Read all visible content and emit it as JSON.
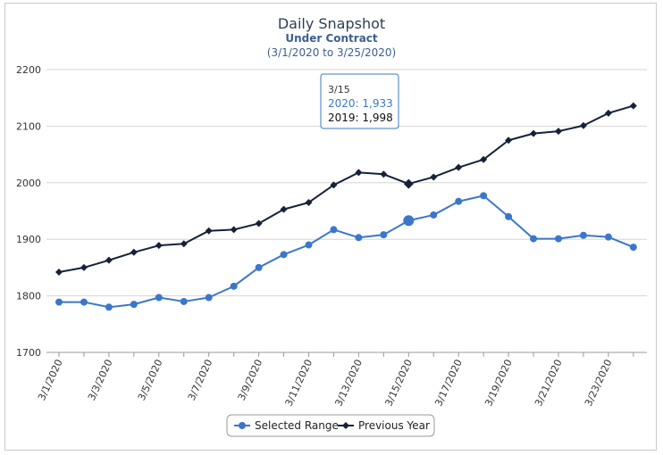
{
  "chart_data": {
    "type": "line",
    "title": "Daily Snapshot",
    "subtitle": "Under Contract",
    "date_range": "(3/1/2020 to 3/25/2020)",
    "ylim": [
      1700,
      2200
    ],
    "y_ticks": [
      "2200",
      "2100",
      "2000",
      "1900",
      "1800",
      "1700"
    ],
    "x": [
      "3/1/2020",
      "3/2/2020",
      "3/3/2020",
      "3/4/2020",
      "3/5/2020",
      "3/6/2020",
      "3/7/2020",
      "3/8/2020",
      "3/9/2020",
      "3/10/2020",
      "3/11/2020",
      "3/12/2020",
      "3/13/2020",
      "3/14/2020",
      "3/15/2020",
      "3/16/2020",
      "3/17/2020",
      "3/18/2020",
      "3/19/2020",
      "3/20/2020",
      "3/21/2020",
      "3/22/2020",
      "3/23/2020",
      "3/24/2020"
    ],
    "x_tick_labels": [
      "3/1/2020",
      "3/3/2020",
      "3/5/2020",
      "3/7/2020",
      "3/9/2020",
      "3/11/2020",
      "3/13/2020",
      "3/15/2020",
      "3/17/2020",
      "3/19/2020",
      "3/21/2020",
      "3/23/2020"
    ],
    "series": [
      {
        "name": "Selected Range",
        "color": "#3b77c9",
        "marker": "circle",
        "values": [
          1789,
          1789,
          1780,
          1785,
          1797,
          1790,
          1797,
          1817,
          1850,
          1873,
          1890,
          1917,
          1903,
          1908,
          1933,
          1943,
          1967,
          1977,
          1940,
          1901,
          1901,
          1907,
          1904,
          1886
        ]
      },
      {
        "name": "Previous Year",
        "color": "#152238",
        "marker": "diamond",
        "values": [
          1842,
          1850,
          1863,
          1877,
          1889,
          1892,
          1915,
          1917,
          1928,
          1953,
          1965,
          1996,
          2018,
          2015,
          1998,
          2010,
          2027,
          2041,
          2075,
          2087,
          2091,
          2101,
          2123,
          2136
        ]
      }
    ],
    "tooltip": {
      "label": "3/15",
      "line1": "2020: 1,933",
      "line2": "2019: 1,998"
    },
    "legend": {
      "position": "bottom-center"
    },
    "grid": true
  }
}
